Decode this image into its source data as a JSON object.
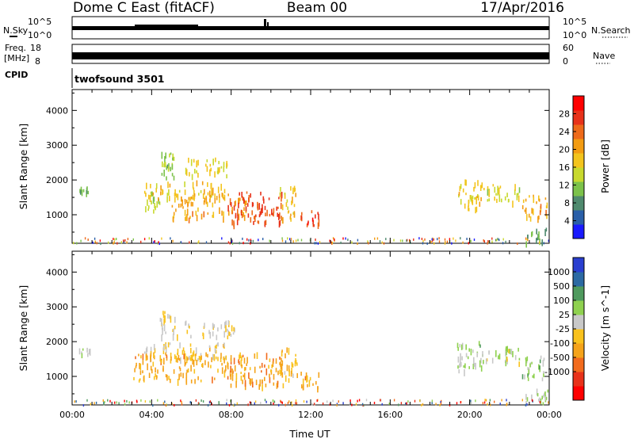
{
  "header": {
    "radar": "Dome C East (fitACF)",
    "beam": "Beam 00",
    "date": "17/Apr/2016"
  },
  "strip_labels": {
    "nsky": "N.Sky",
    "freq_line1": "Freq.",
    "freq_line2": "[MHz]",
    "cpid": "CPID",
    "nsearch": "N.Search",
    "nave": "Nave",
    "noise_ticks": [
      "10^5",
      "10^0"
    ],
    "freq_ticks": [
      "18",
      "8"
    ],
    "nave_ticks": [
      "60",
      "0"
    ],
    "cpid_value": "twofsound 3501"
  },
  "colors": {
    "axis": "#000000",
    "power_scale": [
      "#1a1aff",
      "#2a5fa8",
      "#4f8a6e",
      "#7cc24a",
      "#c8d92e",
      "#f3c41d",
      "#f39c12",
      "#ee6a1a",
      "#e8321a",
      "#ff0000"
    ],
    "velocity_scale": [
      "#ff0000",
      "#e8321a",
      "#f26b1d",
      "#f5a31a",
      "#f9c21d",
      "#c8c8c8",
      "#8fd14f",
      "#4f9a5e",
      "#2c6aa3",
      "#2a3fd0"
    ]
  },
  "chart_data": [
    {
      "type": "heatmap",
      "name": "power",
      "ylabel": "Slant Range [km]",
      "xlabel": "",
      "xlim": [
        0,
        24
      ],
      "ylim": [
        180,
        4600
      ],
      "x_ticks": [],
      "y_ticks": [
        1000,
        2000,
        3000,
        4000
      ],
      "colorbar": {
        "label": "Power [dB]",
        "range": [
          0,
          32
        ],
        "ticks": [
          "4",
          "8",
          "12",
          "16",
          "20",
          "24",
          "28"
        ]
      },
      "regions": [
        {
          "x": [
            0.3,
            0.9
          ],
          "y": [
            1650,
            1850
          ],
          "value": 10
        },
        {
          "x": [
            3.6,
            4.4
          ],
          "y": [
            1100,
            1700
          ],
          "value": 14
        },
        {
          "x": [
            4.4,
            5.3
          ],
          "y": [
            2100,
            2900
          ],
          "value": 12
        },
        {
          "x": [
            5.6,
            7.8
          ],
          "y": [
            2150,
            2650
          ],
          "value": 16
        },
        {
          "x": [
            3.6,
            7.8
          ],
          "y": [
            1500,
            2000
          ],
          "value": 18
        },
        {
          "x": [
            5.0,
            8.8
          ],
          "y": [
            900,
            1700
          ],
          "value": 20
        },
        {
          "x": [
            7.8,
            10.6
          ],
          "y": [
            750,
            1700
          ],
          "value": 26
        },
        {
          "x": [
            10.4,
            11.3
          ],
          "y": [
            900,
            1850
          ],
          "value": 18
        },
        {
          "x": [
            11.4,
            12.4
          ],
          "y": [
            700,
            1150
          ],
          "value": 26
        },
        {
          "x": [
            19.3,
            20.6
          ],
          "y": [
            1200,
            2100
          ],
          "value": 17
        },
        {
          "x": [
            20.6,
            22.6
          ],
          "y": [
            1400,
            1900
          ],
          "value": 15
        },
        {
          "x": [
            22.6,
            23.9
          ],
          "y": [
            950,
            1600
          ],
          "value": 20
        },
        {
          "x": [
            22.8,
            23.9
          ],
          "y": [
            200,
            650
          ],
          "value": 10
        }
      ]
    },
    {
      "type": "heatmap",
      "name": "velocity",
      "ylabel": "Slant Range [km]",
      "xlabel": "Time UT",
      "xlim": [
        0,
        24
      ],
      "ylim": [
        180,
        4600
      ],
      "x_ticks": [
        "00:00",
        "04:00",
        "08:00",
        "12:00",
        "16:00",
        "20:00",
        "00:00"
      ],
      "y_ticks": [
        1000,
        2000,
        3000,
        4000
      ],
      "colorbar": {
        "label": "Velocity [m s^-1]",
        "range": [
          -1250,
          1250
        ],
        "ticks": [
          "1000",
          "500",
          "100",
          "25",
          "-25",
          "-100",
          "-500",
          "-1000"
        ]
      },
      "regions": [
        {
          "x": [
            0.3,
            0.9
          ],
          "y": [
            1650,
            1850
          ],
          "value": 60
        },
        {
          "x": [
            4.4,
            5.3
          ],
          "y": [
            2100,
            2900
          ],
          "value": 0
        },
        {
          "x": [
            5.6,
            8.2
          ],
          "y": [
            2150,
            2650
          ],
          "value": 0
        },
        {
          "x": [
            3.6,
            7.8
          ],
          "y": [
            1500,
            2000
          ],
          "value": -70
        },
        {
          "x": [
            3.0,
            8.8
          ],
          "y": [
            900,
            1700
          ],
          "value": -300
        },
        {
          "x": [
            7.8,
            10.6
          ],
          "y": [
            750,
            1700
          ],
          "value": -400
        },
        {
          "x": [
            10.4,
            11.3
          ],
          "y": [
            900,
            1850
          ],
          "value": -200
        },
        {
          "x": [
            11.4,
            12.4
          ],
          "y": [
            700,
            1150
          ],
          "value": -300
        },
        {
          "x": [
            19.3,
            20.6
          ],
          "y": [
            1200,
            2100
          ],
          "value": 300
        },
        {
          "x": [
            20.6,
            22.6
          ],
          "y": [
            1400,
            1900
          ],
          "value": 200
        },
        {
          "x": [
            22.6,
            23.9
          ],
          "y": [
            950,
            1600
          ],
          "value": 300
        },
        {
          "x": [
            22.8,
            23.9
          ],
          "y": [
            200,
            650
          ],
          "value": 300
        }
      ]
    }
  ]
}
